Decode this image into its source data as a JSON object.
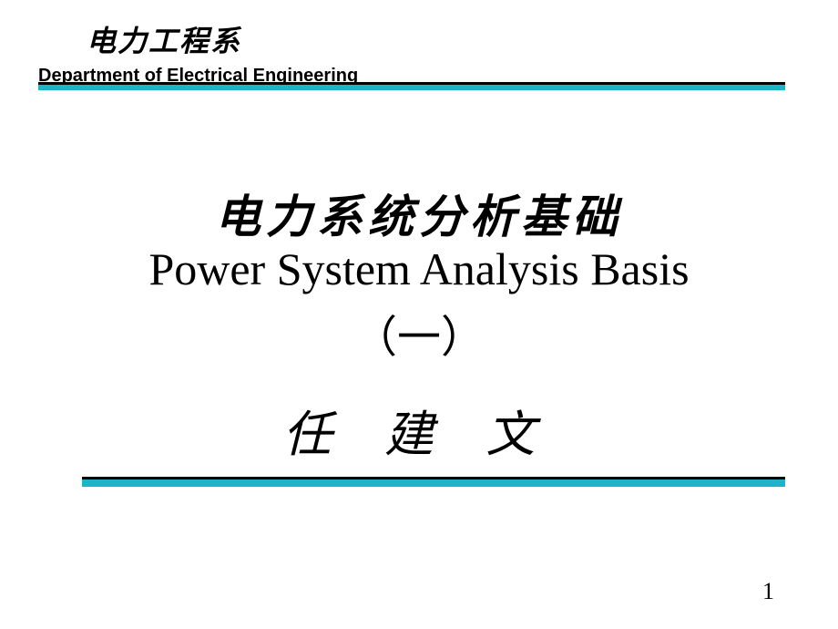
{
  "header": {
    "dept_cn": "电力工程系",
    "dept_en": "Department of Electrical Engineering"
  },
  "divider": {
    "top_black_color": "#000000",
    "top_cyan_color": "#1bb5c6",
    "bottom_black_color": "#000000",
    "bottom_cyan_color": "#1bb5c6"
  },
  "title": {
    "cn": "电力系统分析基础",
    "en": "Power System Analysis Basis",
    "part": "（一）"
  },
  "author": "任  建  文",
  "page_number": "1",
  "styling": {
    "background_color": "#ffffff",
    "text_color": "#000000",
    "dept_cn_fontsize": 32,
    "dept_en_fontsize": 20,
    "title_cn_fontsize": 50,
    "title_en_fontsize": 50,
    "part_fontsize": 48,
    "author_fontsize": 54,
    "page_number_fontsize": 26,
    "cn_font": "KaiTi",
    "en_font": "Times New Roman",
    "header_en_font": "Arial"
  }
}
